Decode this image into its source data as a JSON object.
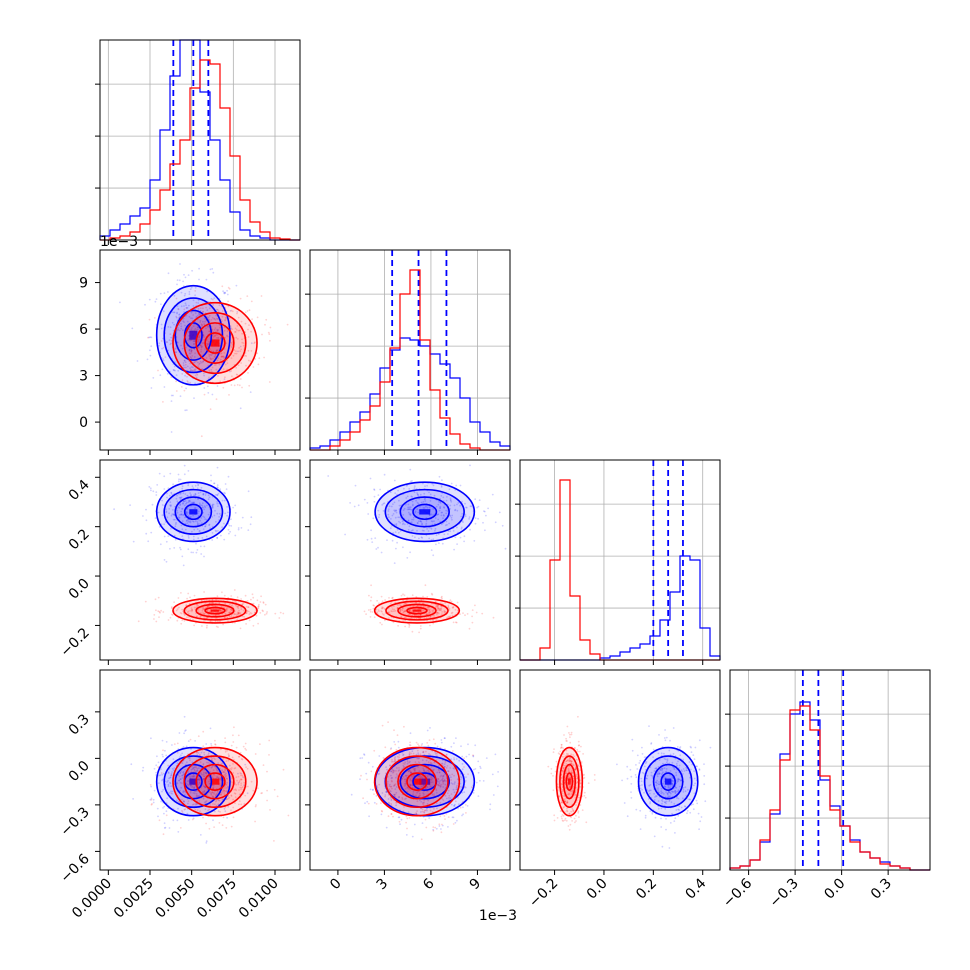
{
  "chart_data": {
    "type": "corner",
    "colors": {
      "blue": "#0000ff",
      "red": "#ff0000"
    },
    "params": [
      {
        "range": [
          -0.0005,
          0.0115
        ],
        "ticks": [
          0.0,
          0.0025,
          0.005,
          0.0075,
          0.01
        ],
        "tick_labels": [
          "0.0000",
          "0.0025",
          "0.0050",
          "0.0075",
          "0.0100"
        ],
        "offset_label": ""
      },
      {
        "range": [
          -0.0018,
          0.0111
        ],
        "ticks": [
          0.0,
          0.003,
          0.006,
          0.009
        ],
        "tick_labels": [
          "0",
          "3",
          "6",
          "9"
        ],
        "offset_label": "1e−3"
      },
      {
        "range": [
          -0.34,
          0.47
        ],
        "ticks": [
          -0.2,
          0.0,
          0.2,
          0.4
        ],
        "tick_labels": [
          "−0.2",
          "0.0",
          "0.2",
          "0.4"
        ],
        "offset_label": ""
      },
      {
        "range": [
          -0.72,
          0.57
        ],
        "ticks": [
          -0.6,
          -0.3,
          0.0,
          0.3
        ],
        "tick_labels": [
          "−0.6",
          "−0.3",
          "0.0",
          "0.3"
        ],
        "offset_label": ""
      }
    ],
    "y_offset_labels": {
      "1": "1e−3"
    },
    "series": [
      {
        "color": "blue",
        "means": [
          0.0051,
          0.0056,
          0.26,
          -0.15
        ],
        "sds": [
          0.0011,
          0.0016,
          0.06,
          0.11
        ],
        "quantiles": [
          [
            0.0039,
            0.0051,
            0.006
          ],
          [
            0.0035,
            0.0052,
            0.007
          ],
          [
            0.2,
            0.26,
            0.32
          ],
          [
            -0.25,
            -0.15,
            0.01
          ]
        ],
        "hists": [
          {
            "edges": [
              -0.0005,
              0.0115
            ],
            "counts": [
              0.02,
              0.05,
              0.08,
              0.12,
              0.16,
              0.3,
              0.55,
              0.82,
              1.0,
              1.0,
              0.74,
              0.5,
              0.3,
              0.14,
              0.05,
              0.02,
              0.01,
              0.0,
              0.0,
              0.0
            ]
          },
          {
            "edges": [
              -0.0018,
              0.0111
            ],
            "counts": [
              0.01,
              0.02,
              0.05,
              0.09,
              0.14,
              0.19,
              0.28,
              0.41,
              0.5,
              0.56,
              0.55,
              0.52,
              0.48,
              0.43,
              0.36,
              0.26,
              0.14,
              0.09,
              0.04,
              0.02
            ]
          },
          {
            "edges": [
              -0.34,
              0.47
            ],
            "counts": [
              0.0,
              0.0,
              0.0,
              0.0,
              0.0,
              0.0,
              0.0,
              0.0,
              0.01,
              0.02,
              0.04,
              0.06,
              0.08,
              0.12,
              0.2,
              0.34,
              0.52,
              0.5,
              0.16,
              0.02
            ]
          },
          {
            "edges": [
              -0.72,
              0.57
            ],
            "counts": [
              0.01,
              0.02,
              0.05,
              0.14,
              0.28,
              0.58,
              0.78,
              0.84,
              0.75,
              0.45,
              0.32,
              0.22,
              0.15,
              0.09,
              0.06,
              0.04,
              0.02,
              0.01,
              0.0,
              0.0
            ]
          }
        ]
      },
      {
        "color": "red",
        "means": [
          0.0064,
          0.0051,
          -0.14,
          -0.15
        ],
        "sds": [
          0.0012,
          0.0013,
          0.025,
          0.11
        ],
        "quantiles": [],
        "hists": [
          {
            "edges": [
              -0.0005,
              0.0115
            ],
            "counts": [
              0.0,
              0.01,
              0.02,
              0.04,
              0.08,
              0.15,
              0.25,
              0.38,
              0.5,
              0.76,
              0.9,
              0.88,
              0.66,
              0.42,
              0.2,
              0.09,
              0.04,
              0.01,
              0.005,
              0.0
            ]
          },
          {
            "edges": [
              -0.0018,
              0.0111
            ],
            "counts": [
              0.0,
              0.0,
              0.02,
              0.05,
              0.09,
              0.15,
              0.22,
              0.34,
              0.51,
              0.78,
              0.9,
              0.55,
              0.3,
              0.16,
              0.08,
              0.03,
              0.01,
              0.0,
              0.0,
              0.0
            ]
          },
          {
            "edges": [
              -0.34,
              0.47
            ],
            "counts": [
              0.0,
              0.0,
              0.06,
              0.5,
              0.9,
              0.32,
              0.1,
              0.03,
              0.0,
              0.0,
              0.0,
              0.0,
              0.0,
              0.0,
              0.0,
              0.0,
              0.0,
              0.0,
              0.0,
              0.0
            ]
          },
          {
            "edges": [
              -0.72,
              0.57
            ],
            "counts": [
              0.01,
              0.02,
              0.05,
              0.15,
              0.3,
              0.55,
              0.8,
              0.82,
              0.7,
              0.47,
              0.3,
              0.22,
              0.14,
              0.09,
              0.06,
              0.03,
              0.02,
              0.01,
              0.0,
              0.0
            ]
          }
        ]
      }
    ]
  }
}
